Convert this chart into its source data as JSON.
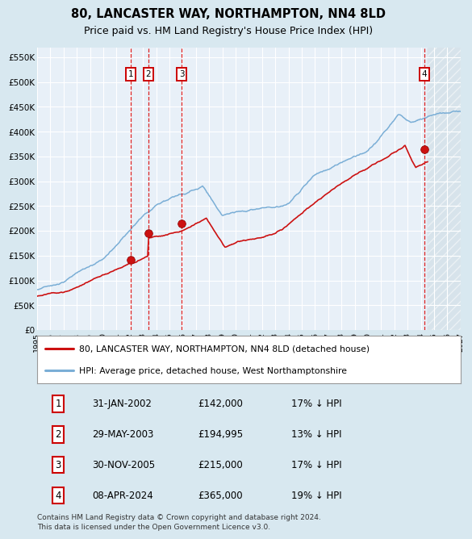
{
  "title": "80, LANCASTER WAY, NORTHAMPTON, NN4 8LD",
  "subtitle": "Price paid vs. HM Land Registry's House Price Index (HPI)",
  "title_fontsize": 10.5,
  "subtitle_fontsize": 9,
  "xlim": [
    1995.0,
    2027.0
  ],
  "ylim": [
    0,
    570000
  ],
  "yticks": [
    0,
    50000,
    100000,
    150000,
    200000,
    250000,
    300000,
    350000,
    400000,
    450000,
    500000,
    550000
  ],
  "ytick_labels": [
    "£0",
    "£50K",
    "£100K",
    "£150K",
    "£200K",
    "£250K",
    "£300K",
    "£350K",
    "£400K",
    "£450K",
    "£500K",
    "£550K"
  ],
  "xticks": [
    1995,
    1996,
    1997,
    1998,
    1999,
    2000,
    2001,
    2002,
    2003,
    2004,
    2005,
    2006,
    2007,
    2008,
    2009,
    2010,
    2011,
    2012,
    2013,
    2014,
    2015,
    2016,
    2017,
    2018,
    2019,
    2020,
    2021,
    2022,
    2023,
    2024,
    2025,
    2026,
    2027
  ],
  "hpi_color": "#7aaed6",
  "price_color": "#cc1111",
  "bg_color": "#d8e8f0",
  "plot_bg_color": "#e8f0f8",
  "grid_color": "#ffffff",
  "hatch_color": "#b0c8d8",
  "vline_color": "#dd2222",
  "transaction_dates": [
    2002.08,
    2003.42,
    2005.92,
    2024.27
  ],
  "transaction_prices": [
    142000,
    194995,
    215000,
    365000
  ],
  "transaction_labels": [
    "1",
    "2",
    "3",
    "4"
  ],
  "legend_line1": "80, LANCASTER WAY, NORTHAMPTON, NN4 8LD (detached house)",
  "legend_line2": "HPI: Average price, detached house, West Northamptonshire",
  "table_data": [
    [
      "1",
      "31-JAN-2002",
      "£142,000",
      "17% ↓ HPI"
    ],
    [
      "2",
      "29-MAY-2003",
      "£194,995",
      "13% ↓ HPI"
    ],
    [
      "3",
      "30-NOV-2005",
      "£215,000",
      "17% ↓ HPI"
    ],
    [
      "4",
      "08-APR-2024",
      "£365,000",
      "19% ↓ HPI"
    ]
  ],
  "footnote": "Contains HM Land Registry data © Crown copyright and database right 2024.\nThis data is licensed under the Open Government Licence v3.0.",
  "last_data_year": 2024.5,
  "future_start": 2024.5
}
